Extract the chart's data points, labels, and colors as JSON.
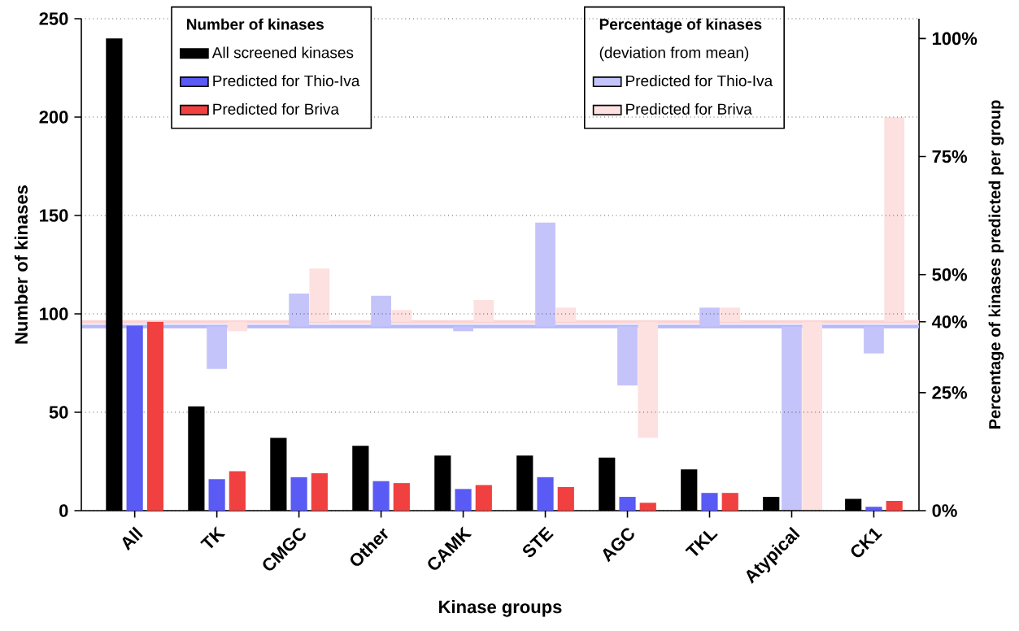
{
  "chart_data": {
    "type": "bar",
    "xlabel": "Kinase groups",
    "ylabel": "Number of kinases",
    "y2label": "Percentage of kinases predicted per group",
    "legend_title": "Number of kinases",
    "annotations": [
      "Percentage of kinases",
      "(deviation from mean)"
    ],
    "categories": [
      "All",
      "TK",
      "CMGC",
      "Other",
      "CAMK",
      "STE",
      "AGC",
      "TKL",
      "Atypical",
      "CK1"
    ],
    "series": [
      {
        "name": "All screened kinases",
        "color": "#000000",
        "values": [
          240,
          53,
          37,
          33,
          28,
          28,
          27,
          21,
          7,
          6
        ]
      },
      {
        "name": "Predicted for Thio-Iva",
        "color": "#5a5af5",
        "values": [
          94,
          16,
          17,
          15,
          11,
          17,
          7,
          9,
          0,
          2
        ]
      },
      {
        "name": "Predicted for Briva",
        "color": "#f04040",
        "values": [
          96,
          20,
          19,
          14,
          13,
          12,
          4,
          9,
          0,
          5
        ]
      },
      {
        "name": "Predicted for Thio-Iva",
        "color": "#c4c4fa",
        "axis": "y2",
        "base": [
          null,
          39,
          39,
          39,
          39,
          39,
          39,
          39,
          39,
          39
        ],
        "values": [
          null,
          -9,
          7,
          6.5,
          -1,
          22,
          -12.5,
          4,
          -39,
          -5.7
        ]
      },
      {
        "name": "Predicted for Briva",
        "color": "#fde0e0",
        "axis": "y2",
        "base": [
          null,
          40,
          40,
          40,
          40,
          40,
          40,
          40,
          40,
          40
        ],
        "values": [
          null,
          -2,
          11.3,
          2.5,
          4.6,
          3,
          -24.6,
          3,
          -40,
          43.3
        ]
      }
    ],
    "ylim": [
      0,
      250
    ],
    "yticks": [
      0,
      50,
      100,
      150,
      200,
      250
    ],
    "y2lim": [
      0,
      104.2
    ],
    "y2ticks": [
      {
        "value": 0,
        "label": "0%"
      },
      {
        "value": 25,
        "label": "25%"
      },
      {
        "value": 40,
        "label": "40%"
      },
      {
        "value": 50,
        "label": "50%"
      },
      {
        "value": 75,
        "label": "75%"
      },
      {
        "value": 100,
        "label": "100%"
      }
    ],
    "ref_lines": [
      {
        "axis": "y2",
        "value": 39,
        "color": "#b8b8f8"
      },
      {
        "axis": "y2",
        "value": 40,
        "color": "#fcd4d4"
      }
    ],
    "grid": "y",
    "legend": "top"
  }
}
